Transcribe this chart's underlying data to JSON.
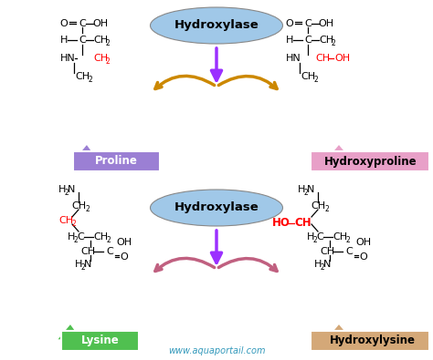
{
  "bg_color": "#ffffff",
  "watermark": "www.aquaportail.com",
  "hydroxylase_text": "Hydroxylase",
  "proline_label": "Proline",
  "hydroxyproline_label": "Hydroxyproline",
  "lysine_label": "Lysine",
  "hydroxylysine_label": "Hydroxylysine",
  "reaction_arrow_color": "#9B30FF",
  "curved_arrow_color_top": "#CC8800",
  "curved_arrow_color_bottom": "#C06080",
  "red_text_color": "#FF0000",
  "blue_ellipse_color": "#A0C8E8",
  "proline_box_color": "#9B7FD4",
  "hydroxyproline_box_color": "#E8A0C8",
  "lysine_box_color": "#50C050",
  "hydroxylysine_box_color": "#D4A878"
}
